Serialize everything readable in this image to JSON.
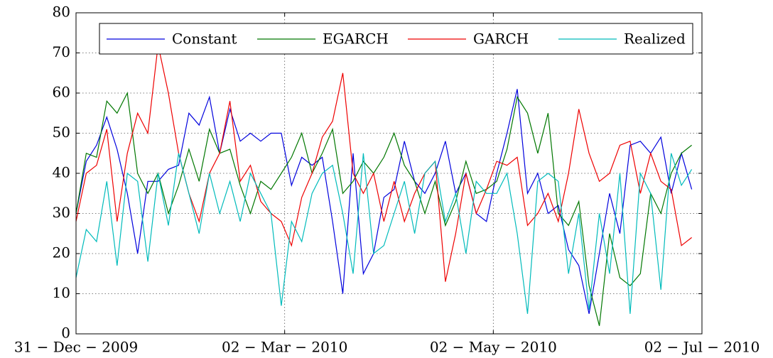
{
  "chart_data": {
    "type": "line",
    "x": [
      "2009-12-31",
      "2010-01-03",
      "2010-01-06",
      "2010-01-09",
      "2010-01-12",
      "2010-01-15",
      "2010-01-18",
      "2010-01-21",
      "2010-01-24",
      "2010-01-27",
      "2010-01-30",
      "2010-02-02",
      "2010-02-05",
      "2010-02-08",
      "2010-02-11",
      "2010-02-14",
      "2010-02-17",
      "2010-02-20",
      "2010-02-23",
      "2010-02-26",
      "2010-03-01",
      "2010-03-04",
      "2010-03-07",
      "2010-03-10",
      "2010-03-13",
      "2010-03-16",
      "2010-03-19",
      "2010-03-22",
      "2010-03-25",
      "2010-03-28",
      "2010-03-31",
      "2010-04-03",
      "2010-04-06",
      "2010-04-09",
      "2010-04-12",
      "2010-04-15",
      "2010-04-18",
      "2010-04-21",
      "2010-04-24",
      "2010-04-27",
      "2010-04-30",
      "2010-05-03",
      "2010-05-06",
      "2010-05-09",
      "2010-05-12",
      "2010-05-15",
      "2010-05-18",
      "2010-05-21",
      "2010-05-24",
      "2010-05-27",
      "2010-05-30",
      "2010-06-02",
      "2010-06-05",
      "2010-06-08",
      "2010-06-11",
      "2010-06-14",
      "2010-06-17",
      "2010-06-20",
      "2010-06-23",
      "2010-06-26",
      "2010-06-29"
    ],
    "xlim": [
      "2009-12-31",
      "2010-07-02"
    ],
    "xticks": [
      {
        "value": "2009-12-31",
        "label": "31 − Dec − 2009"
      },
      {
        "value": "2010-03-02",
        "label": "02 − Mar − 2010"
      },
      {
        "value": "2010-05-02",
        "label": "02 − May − 2010"
      },
      {
        "value": "2010-07-02",
        "label": "02 − Jul − 2010"
      }
    ],
    "ylim": [
      0,
      80
    ],
    "yticks": [
      0,
      10,
      20,
      30,
      40,
      50,
      60,
      70,
      80
    ],
    "grid": true,
    "series": [
      {
        "name": "Constant",
        "color": "#0000dd",
        "values": [
          30,
          43,
          47,
          54,
          46,
          35,
          20,
          38,
          38,
          41,
          42,
          55,
          52,
          59,
          45,
          56,
          48,
          50,
          48,
          50,
          50,
          37,
          44,
          42,
          44,
          28,
          10,
          45,
          15,
          20,
          34,
          36,
          48,
          38,
          35,
          40,
          48,
          35,
          40,
          30,
          28,
          40,
          50,
          61,
          35,
          40,
          30,
          32,
          21,
          17,
          5,
          20,
          35,
          25,
          47,
          48,
          45,
          49,
          35,
          45,
          36
        ]
      },
      {
        "name": "EGARCH",
        "color": "#007700",
        "values": [
          30,
          45,
          44,
          58,
          55,
          60,
          40,
          35,
          40,
          30,
          37,
          46,
          38,
          51,
          45,
          46,
          37,
          30,
          38,
          36,
          40,
          44,
          50,
          40,
          45,
          51,
          35,
          38,
          43,
          40,
          44,
          50,
          42,
          38,
          30,
          38,
          27,
          33,
          43,
          35,
          36,
          38,
          46,
          59,
          55,
          45,
          55,
          30,
          27,
          33,
          12,
          2,
          25,
          14,
          12,
          15,
          35,
          30,
          40,
          45,
          47
        ]
      },
      {
        "name": "GARCH",
        "color": "#ee0000",
        "values": [
          28,
          40,
          42,
          51,
          28,
          45,
          55,
          50,
          72,
          60,
          45,
          35,
          28,
          40,
          45,
          58,
          38,
          42,
          33,
          30,
          28,
          22,
          34,
          40,
          49,
          53,
          65,
          40,
          35,
          40,
          28,
          38,
          28,
          35,
          40,
          43,
          13,
          25,
          40,
          30,
          36,
          43,
          42,
          44,
          27,
          30,
          35,
          28,
          40,
          56,
          45,
          38,
          40,
          47,
          48,
          35,
          45,
          38,
          36,
          22,
          24
        ]
      },
      {
        "name": "Realized",
        "color": "#00bbbb",
        "values": [
          14,
          26,
          23,
          38,
          17,
          40,
          38,
          18,
          40,
          27,
          45,
          35,
          25,
          40,
          30,
          38,
          28,
          40,
          35,
          30,
          7,
          28,
          23,
          35,
          40,
          42,
          30,
          15,
          45,
          20,
          22,
          30,
          38,
          25,
          40,
          43,
          28,
          35,
          20,
          38,
          35,
          35,
          40,
          25,
          5,
          38,
          40,
          38,
          15,
          30,
          6,
          30,
          15,
          40,
          5,
          40,
          35,
          11,
          45,
          37,
          41
        ]
      }
    ]
  }
}
